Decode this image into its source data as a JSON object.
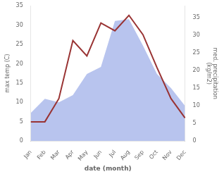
{
  "chart_data": {
    "type": "line",
    "categories": [
      "Jan",
      "Feb",
      "Mar",
      "Apr",
      "May",
      "Jun",
      "Jul",
      "Aug",
      "Sep",
      "Oct",
      "Nov",
      "Dec"
    ],
    "series": [
      {
        "type": "line",
        "color": "#993333",
        "values": [
          5.0,
          5.0,
          11.0,
          26.0,
          22.0,
          30.5,
          28.5,
          32.5,
          27.5,
          19.0,
          11.0,
          6.0
        ]
      },
      {
        "type": "area",
        "color": "#b8c4ee",
        "axis": "y2",
        "values": [
          8,
          12,
          11,
          13,
          19,
          21,
          34,
          34.5,
          27,
          19,
          15,
          10
        ]
      }
    ],
    "xlabel": "date (month)",
    "ylabel": "max temp (C)",
    "y2label": "med. precipitation\n(kg/m2)",
    "ylim": [
      0,
      35
    ],
    "yticks": [
      0,
      5,
      10,
      15,
      20,
      25,
      30,
      35
    ],
    "y2lim": [
      0,
      38.33
    ],
    "y2ticks": [
      0,
      5,
      10,
      15,
      20,
      25,
      30,
      35
    ],
    "grid": false
  }
}
